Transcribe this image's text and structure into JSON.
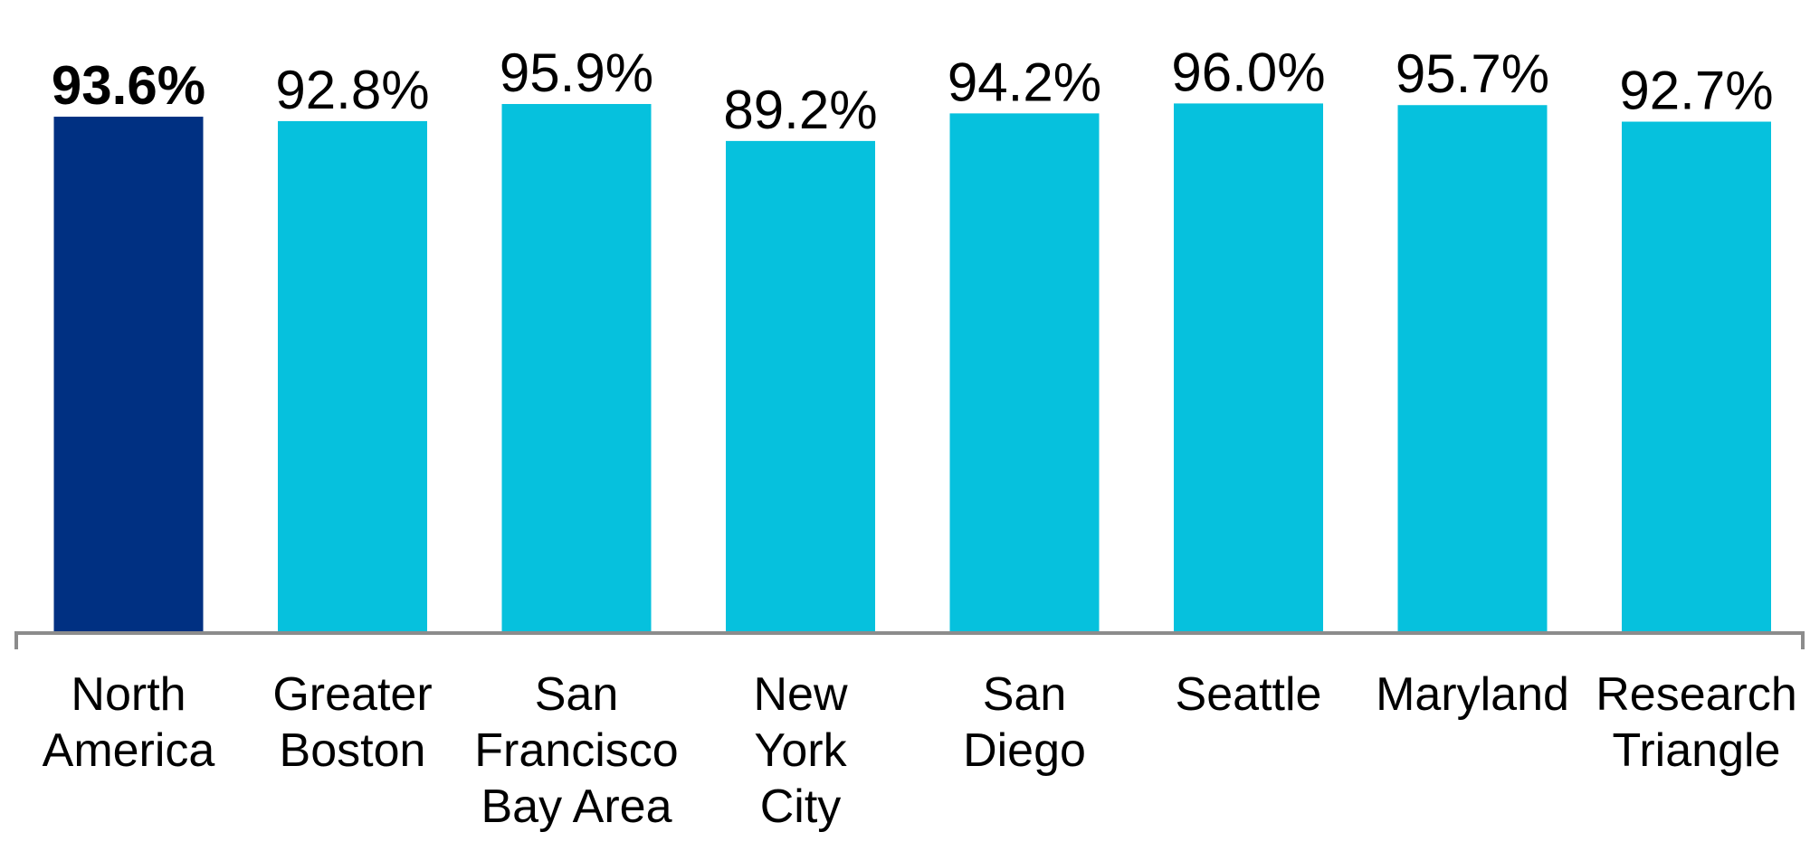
{
  "chart_data": {
    "type": "bar",
    "title": "",
    "xlabel": "",
    "ylabel": "",
    "ylim": [
      0,
      100
    ],
    "grid": false,
    "categories": [
      [
        "North",
        "America"
      ],
      [
        "Greater",
        "Boston"
      ],
      [
        "San",
        "Francisco",
        "Bay Area"
      ],
      [
        "New",
        "York",
        "City"
      ],
      [
        "San",
        "Diego"
      ],
      [
        "Seattle"
      ],
      [
        "Maryland"
      ],
      [
        "Research",
        "Triangle"
      ]
    ],
    "values": [
      93.6,
      92.8,
      95.9,
      89.2,
      94.2,
      96.0,
      95.7,
      92.7
    ],
    "labels": [
      "93.6%",
      "92.8%",
      "95.9%",
      "89.2%",
      "94.2%",
      "96.0%",
      "95.7%",
      "92.7%"
    ],
    "highlight_index": 0,
    "colors": {
      "highlight": "#003082",
      "bar": "#06C1DD",
      "axis": "#8C8C8C"
    }
  }
}
